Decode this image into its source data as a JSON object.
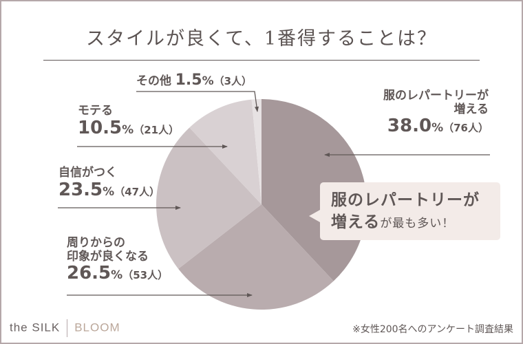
{
  "title": "スタイルが良くて、1番得することは？",
  "chart_data": {
    "type": "pie",
    "title": "スタイルが良くて、1番得することは？",
    "start_angle_deg": 0,
    "direction": "clockwise",
    "slices": [
      {
        "label": "服のレパートリーが増える",
        "percent": 38.0,
        "count": 76,
        "color": "#a6989a"
      },
      {
        "label": "周りからの印象が良くなる",
        "percent": 26.5,
        "count": 53,
        "color": "#b9acae"
      },
      {
        "label": "自信がつく",
        "percent": 23.5,
        "count": 47,
        "color": "#cbc1c3"
      },
      {
        "label": "モテる",
        "percent": 10.5,
        "count": 21,
        "color": "#d9d1d3"
      },
      {
        "label": "その他",
        "percent": 1.5,
        "count": 3,
        "color": "#e7e2e3"
      }
    ],
    "categories": [
      "服のレパートリーが増える",
      "周りからの印象が良くなる",
      "自信がつく",
      "モテる",
      "その他"
    ],
    "values": [
      38.0,
      26.5,
      23.5,
      10.5,
      1.5
    ],
    "counts": [
      76,
      53,
      47,
      21,
      3
    ],
    "unit": "%",
    "sample_size": 200,
    "legend": "none (direct labels with arrows)"
  },
  "labels": {
    "clothes": {
      "line1": "服のレパートリーが",
      "line2": "増える",
      "pct": "38.0",
      "unit": "%",
      "count": "（76人）"
    },
    "impression": {
      "line1": "周りからの",
      "line2": "印象が良くなる",
      "pct": "26.5",
      "unit": "%",
      "count": "（53人）"
    },
    "confidence": {
      "line1": "自信がつく",
      "pct": "23.5",
      "unit": "%",
      "count": "（47人）"
    },
    "popular": {
      "line1": "モテる",
      "pct": "10.5",
      "unit": "%",
      "count": "（21人）"
    },
    "other": {
      "line1": "その他",
      "pct": "1.5",
      "unit": "%",
      "count": "（3人）"
    }
  },
  "callout": {
    "bold1": "服のレパートリーが",
    "bold2": "増える",
    "rest": "が最も多い！"
  },
  "footer": {
    "brand_left": "the SILK",
    "brand_right": "BLOOM",
    "note": "※女性200名へのアンケート調査結果"
  }
}
